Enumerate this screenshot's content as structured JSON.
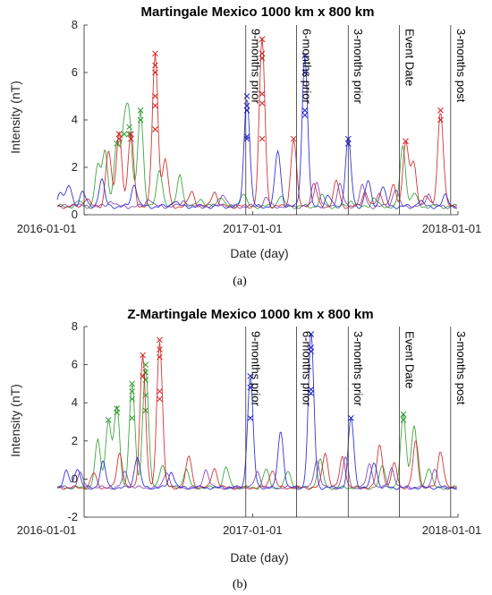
{
  "chart_data": [
    {
      "type": "line",
      "title": "Martingale Mexico 1000 km x 800 km",
      "xlabel": "Date (day)",
      "ylabel": "Intensity (nT)",
      "caption": "(a)",
      "xlim": [
        "2016-01-01",
        "2018-01-01"
      ],
      "xticks": [
        "2016-01-01",
        "2017-01-01",
        "2018-01-01"
      ],
      "ylim": [
        0,
        8
      ],
      "yticks": [
        0,
        2,
        4,
        6,
        8
      ],
      "series_colors": [
        "#2e9c2e",
        "#d02020",
        "#2020d0",
        "#7a3db0"
      ],
      "event_lines": [
        {
          "date": "2016-12-20",
          "label": "9-months prior"
        },
        {
          "date": "2017-03-20",
          "label": "6-months prior"
        },
        {
          "date": "2017-06-20",
          "label": "3-months prior"
        },
        {
          "date": "2017-09-19",
          "label": "Event Date"
        },
        {
          "date": "2017-12-19",
          "label": "3-months post"
        }
      ],
      "series": [
        {
          "peaks": [
            [
              "2016-02-28",
              0.55
            ],
            [
              "2016-04-01",
              2.0
            ],
            [
              "2016-04-14",
              2.7
            ],
            [
              "2016-05-05",
              3.0
            ],
            [
              "2016-05-18",
              3.5
            ],
            [
              "2016-05-27",
              3.8
            ],
            [
              "2016-06-16",
              4.4
            ],
            [
              "2016-07-20",
              1.9
            ],
            [
              "2016-08-25",
              1.7
            ],
            [
              "2016-09-30",
              0.7
            ],
            [
              "2016-11-05",
              0.8
            ],
            [
              "2016-12-15",
              0.9
            ],
            [
              "2017-02-20",
              0.8
            ],
            [
              "2017-05-05",
              0.8
            ],
            [
              "2017-06-25",
              0.6
            ],
            [
              "2017-08-05",
              0.7
            ],
            [
              "2017-09-25",
              2.9
            ],
            [
              "2017-10-15",
              0.9
            ]
          ],
          "markers": [
            [
              "2016-05-05",
              3.0
            ],
            [
              "2016-05-18",
              3.4
            ],
            [
              "2016-05-27",
              3.4
            ],
            [
              "2016-05-27",
              3.7
            ],
            [
              "2016-06-16",
              4.0
            ],
            [
              "2016-06-16",
              4.4
            ]
          ]
        },
        {
          "peaks": [
            [
              "2016-03-12",
              0.7
            ],
            [
              "2016-04-20",
              2.7
            ],
            [
              "2016-05-09",
              3.5
            ],
            [
              "2016-05-30",
              3.4
            ],
            [
              "2016-07-12",
              6.8
            ],
            [
              "2016-07-30",
              2.3
            ],
            [
              "2016-09-15",
              1.0
            ],
            [
              "2016-10-25",
              1.0
            ],
            [
              "2017-01-18",
              7.4
            ],
            [
              "2017-03-15",
              3.2
            ],
            [
              "2017-04-20",
              1.3
            ],
            [
              "2017-05-30",
              1.4
            ],
            [
              "2017-07-20",
              1.0
            ],
            [
              "2017-08-15",
              0.9
            ],
            [
              "2017-09-08",
              1.2
            ],
            [
              "2017-09-30",
              3.1
            ],
            [
              "2017-10-14",
              2.2
            ],
            [
              "2017-11-05",
              0.8
            ],
            [
              "2017-12-01",
              4.4
            ]
          ],
          "markers": [
            [
              "2016-05-09",
              3.2
            ],
            [
              "2016-05-09",
              3.4
            ],
            [
              "2016-05-30",
              3.2
            ],
            [
              "2016-05-30",
              3.4
            ],
            [
              "2016-07-12",
              3.6
            ],
            [
              "2016-07-12",
              4.6
            ],
            [
              "2016-07-12",
              5.0
            ],
            [
              "2016-07-12",
              6.0
            ],
            [
              "2016-07-12",
              6.3
            ],
            [
              "2016-07-12",
              6.8
            ],
            [
              "2017-01-18",
              3.2
            ],
            [
              "2017-01-18",
              4.7
            ],
            [
              "2017-01-18",
              5.1
            ],
            [
              "2017-01-18",
              6.6
            ],
            [
              "2017-01-18",
              6.8
            ],
            [
              "2017-01-18",
              7.4
            ],
            [
              "2017-03-15",
              3.2
            ],
            [
              "2017-09-30",
              3.1
            ],
            [
              "2017-12-01",
              4.0
            ],
            [
              "2017-12-01",
              4.4
            ]
          ]
        },
        {
          "peaks": [
            [
              "2016-01-26",
              1.0
            ],
            [
              "2016-02-10",
              1.2
            ],
            [
              "2016-03-05",
              1.0
            ],
            [
              "2016-04-08",
              1.5
            ],
            [
              "2016-06-05",
              1.3
            ],
            [
              "2016-08-15",
              0.6
            ],
            [
              "2016-12-22",
              5.0
            ],
            [
              "2017-02-15",
              2.7
            ],
            [
              "2017-04-04",
              6.7
            ],
            [
              "2017-05-15",
              0.8
            ],
            [
              "2017-06-20",
              3.2
            ],
            [
              "2017-07-25",
              1.4
            ],
            [
              "2017-08-20",
              1.2
            ],
            [
              "2017-10-25",
              0.6
            ],
            [
              "2017-12-10",
              0.8
            ]
          ],
          "markers": [
            [
              "2016-12-22",
              3.2
            ],
            [
              "2016-12-22",
              3.3
            ],
            [
              "2016-12-22",
              4.4
            ],
            [
              "2016-12-22",
              4.6
            ],
            [
              "2016-12-22",
              5.0
            ],
            [
              "2017-04-04",
              4.2
            ],
            [
              "2017-04-04",
              4.4
            ],
            [
              "2017-04-04",
              6.0
            ],
            [
              "2017-04-04",
              6.7
            ],
            [
              "2017-06-20",
              3.0
            ],
            [
              "2017-06-20",
              3.2
            ]
          ]
        },
        {
          "peaks": [
            [
              "2016-02-20",
              0.5
            ],
            [
              "2016-04-25",
              0.6
            ],
            [
              "2016-07-01",
              0.7
            ],
            [
              "2016-09-01",
              0.6
            ],
            [
              "2016-11-10",
              0.9
            ],
            [
              "2017-01-25",
              0.7
            ],
            [
              "2017-04-25",
              1.4
            ],
            [
              "2017-06-05",
              1.3
            ],
            [
              "2017-07-15",
              1.2
            ],
            [
              "2017-09-12",
              1.1
            ],
            [
              "2017-11-10",
              0.9
            ]
          ],
          "markers": []
        }
      ]
    },
    {
      "type": "line",
      "title": "Z-Martingale Mexico 1000 km x 800 km",
      "xlabel": "Date (day)",
      "ylabel": "Intensity (nT)",
      "caption": "(b)",
      "xlim": [
        "2016-01-01",
        "2018-01-01"
      ],
      "xticks": [
        "2016-01-01",
        "2017-01-01",
        "2018-01-01"
      ],
      "ylim": [
        -2,
        8
      ],
      "yticks": [
        -2,
        0,
        2,
        4,
        6,
        8
      ],
      "series_colors": [
        "#2e9c2e",
        "#d02020",
        "#2020d0",
        "#7a3db0"
      ],
      "event_lines": [
        {
          "date": "2016-12-20",
          "label": "9-months prior"
        },
        {
          "date": "2017-03-20",
          "label": "6-months prior"
        },
        {
          "date": "2017-06-20",
          "label": "3-months prior"
        },
        {
          "date": "2017-09-19",
          "label": "Event Date"
        },
        {
          "date": "2017-12-19",
          "label": "3-months post"
        }
      ],
      "series": [
        {
          "peaks": [
            [
              "2016-04-01",
              2.0
            ],
            [
              "2016-04-20",
              3.1
            ],
            [
              "2016-05-05",
              3.8
            ],
            [
              "2016-06-01",
              5.0
            ],
            [
              "2016-06-25",
              6.0
            ],
            [
              "2016-07-25",
              0.8
            ],
            [
              "2016-09-05",
              0.5
            ],
            [
              "2016-11-15",
              0.6
            ],
            [
              "2017-01-25",
              0.5
            ],
            [
              "2017-03-05",
              0.4
            ],
            [
              "2017-05-01",
              1.0
            ],
            [
              "2017-08-20",
              0.7
            ],
            [
              "2017-09-26",
              3.4
            ],
            [
              "2017-10-15",
              2.8
            ],
            [
              "2017-11-10",
              0.6
            ]
          ],
          "markers": [
            [
              "2016-04-20",
              3.1
            ],
            [
              "2016-05-05",
              3.5
            ],
            [
              "2016-05-05",
              3.7
            ],
            [
              "2016-06-01",
              3.2
            ],
            [
              "2016-06-01",
              4.2
            ],
            [
              "2016-06-01",
              4.6
            ],
            [
              "2016-06-01",
              5.0
            ],
            [
              "2016-06-25",
              3.6
            ],
            [
              "2016-06-25",
              4.4
            ],
            [
              "2016-06-25",
              5.2
            ],
            [
              "2016-06-25",
              5.6
            ],
            [
              "2016-06-25",
              6.0
            ],
            [
              "2017-09-26",
              3.1
            ],
            [
              "2017-09-26",
              3.4
            ]
          ]
        },
        {
          "peaks": [
            [
              "2016-03-25",
              0.3
            ],
            [
              "2016-05-10",
              1.4
            ],
            [
              "2016-06-20",
              6.5
            ],
            [
              "2016-07-20",
              7.3
            ],
            [
              "2016-09-10",
              1.2
            ],
            [
              "2016-10-25",
              0.6
            ],
            [
              "2017-02-05",
              0.5
            ],
            [
              "2017-05-10",
              1.4
            ],
            [
              "2017-06-10",
              1.2
            ],
            [
              "2017-08-15",
              1.8
            ],
            [
              "2017-09-10",
              0.8
            ],
            [
              "2017-10-18",
              2.0
            ],
            [
              "2017-12-01",
              1.5
            ]
          ],
          "markers": [
            [
              "2016-06-20",
              5.4
            ],
            [
              "2016-06-20",
              6.5
            ],
            [
              "2016-07-20",
              4.2
            ],
            [
              "2016-07-20",
              4.6
            ],
            [
              "2016-07-20",
              6.4
            ],
            [
              "2016-07-20",
              6.8
            ],
            [
              "2016-07-20",
              7.3
            ]
          ]
        },
        {
          "peaks": [
            [
              "2016-02-05",
              0.4
            ],
            [
              "2016-02-25",
              0.6
            ],
            [
              "2016-04-10",
              0.9
            ],
            [
              "2016-06-10",
              1.2
            ],
            [
              "2016-08-10",
              0.4
            ],
            [
              "2016-12-28",
              5.4
            ],
            [
              "2017-02-20",
              2.5
            ],
            [
              "2017-04-15",
              7.6
            ],
            [
              "2017-06-25",
              3.2
            ],
            [
              "2017-08-05",
              0.9
            ]
          ],
          "markers": [
            [
              "2016-12-28",
              3.2
            ],
            [
              "2016-12-28",
              4.8
            ],
            [
              "2016-12-28",
              5.4
            ],
            [
              "2017-04-15",
              4.5
            ],
            [
              "2017-04-15",
              4.7
            ],
            [
              "2017-04-15",
              6.7
            ],
            [
              "2017-04-15",
              6.9
            ],
            [
              "2017-04-15",
              7.6
            ],
            [
              "2017-06-25",
              3.2
            ]
          ]
        },
        {
          "peaks": [
            [
              "2016-03-01",
              0.3
            ],
            [
              "2016-05-20",
              0.4
            ],
            [
              "2016-08-01",
              0.4
            ],
            [
              "2016-10-10",
              0.5
            ],
            [
              "2017-01-10",
              0.4
            ],
            [
              "2017-04-25",
              1.0
            ],
            [
              "2017-06-15",
              1.1
            ],
            [
              "2017-07-28",
              0.8
            ],
            [
              "2017-09-05",
              0.6
            ],
            [
              "2017-11-20",
              0.5
            ]
          ],
          "markers": []
        }
      ]
    }
  ]
}
